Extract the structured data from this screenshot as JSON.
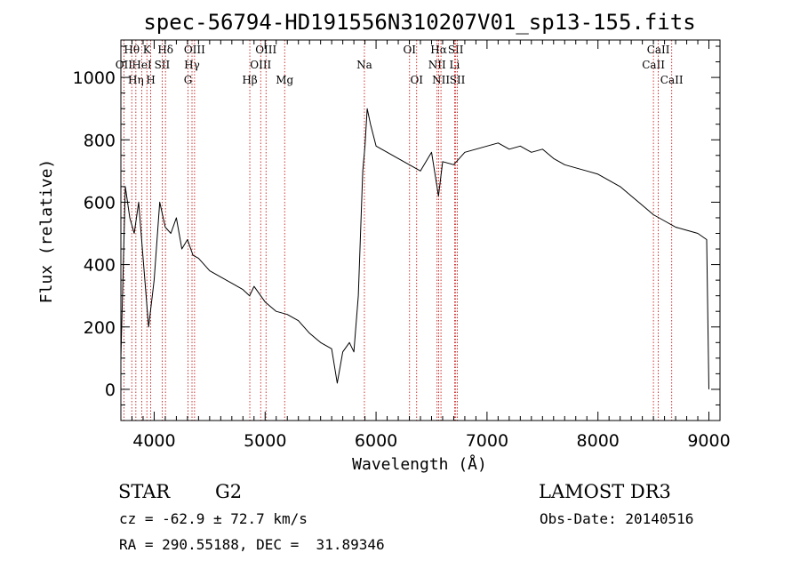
{
  "chart_data": {
    "type": "line",
    "title": "spec-56794-HD191556N310207V01_sp13-155.fits",
    "xlabel": "Wavelength (Å)",
    "ylabel": "Flux (relative)",
    "xlim": [
      3700,
      9100
    ],
    "ylim": [
      -100,
      1120
    ],
    "xticks": [
      "4000",
      "5000",
      "6000",
      "7000",
      "8000",
      "9000"
    ],
    "yticks": [
      "0",
      "200",
      "400",
      "600",
      "800",
      "1000"
    ],
    "grid": false,
    "series": [
      {
        "color": "#000000",
        "x": [
          3700,
          3740,
          3780,
          3820,
          3860,
          3900,
          3950,
          4000,
          4050,
          4100,
          4150,
          4200,
          4250,
          4300,
          4350,
          4400,
          4500,
          4600,
          4700,
          4800,
          4860,
          4900,
          5000,
          5100,
          5200,
          5300,
          5400,
          5500,
          5600,
          5650,
          5700,
          5760,
          5800,
          5840,
          5860,
          5880,
          5900,
          5920,
          5950,
          6000,
          6100,
          6200,
          6300,
          6400,
          6500,
          6563,
          6600,
          6700,
          6800,
          6900,
          7000,
          7100,
          7200,
          7300,
          7400,
          7500,
          7600,
          7700,
          7800,
          7900,
          8000,
          8100,
          8200,
          8300,
          8400,
          8500,
          8600,
          8700,
          8800,
          8900,
          8980,
          9000
        ],
        "y": [
          100,
          650,
          550,
          500,
          600,
          420,
          200,
          350,
          600,
          520,
          500,
          550,
          450,
          480,
          430,
          420,
          380,
          360,
          340,
          320,
          300,
          330,
          280,
          250,
          240,
          220,
          180,
          150,
          130,
          20,
          120,
          150,
          120,
          300,
          500,
          700,
          780,
          900,
          850,
          780,
          760,
          740,
          720,
          700,
          760,
          620,
          730,
          720,
          760,
          770,
          780,
          790,
          770,
          780,
          760,
          770,
          740,
          720,
          710,
          700,
          690,
          670,
          650,
          620,
          590,
          560,
          540,
          520,
          510,
          500,
          480,
          0
        ]
      }
    ],
    "line_markers": [
      {
        "label": "OII",
        "wl": 3727,
        "row": 2
      },
      {
        "label": "Hθ",
        "wl": 3798,
        "row": 1
      },
      {
        "label": "Hη",
        "wl": 3835,
        "row": 3
      },
      {
        "label": "HeI",
        "wl": 3889,
        "row": 2
      },
      {
        "label": "K",
        "wl": 3934,
        "row": 1
      },
      {
        "label": "H",
        "wl": 3969,
        "row": 3
      },
      {
        "label": "SII",
        "wl": 4072,
        "row": 2
      },
      {
        "label": "Hδ",
        "wl": 4102,
        "row": 1
      },
      {
        "label": "G",
        "wl": 4305,
        "row": 3
      },
      {
        "label": "Hγ",
        "wl": 4341,
        "row": 2
      },
      {
        "label": "OIII",
        "wl": 4364,
        "row": 1
      },
      {
        "label": "Hβ",
        "wl": 4862,
        "row": 3
      },
      {
        "label": "OIII",
        "wl": 4960,
        "row": 2
      },
      {
        "label": "OIII",
        "wl": 5008,
        "row": 1
      },
      {
        "label": "Mg",
        "wl": 5176,
        "row": 3
      },
      {
        "label": "Na",
        "wl": 5895,
        "row": 2
      },
      {
        "label": "OI",
        "wl": 6302,
        "row": 1
      },
      {
        "label": "OI",
        "wl": 6366,
        "row": 3
      },
      {
        "label": "NII",
        "wl": 6550,
        "row": 2
      },
      {
        "label": "Hα",
        "wl": 6565,
        "row": 1
      },
      {
        "label": "NII",
        "wl": 6585,
        "row": 3
      },
      {
        "label": "Li",
        "wl": 6708,
        "row": 2
      },
      {
        "label": "SII",
        "wl": 6718,
        "row": 1
      },
      {
        "label": "SII",
        "wl": 6733,
        "row": 3
      },
      {
        "label": "CaII",
        "wl": 8500,
        "row": 2
      },
      {
        "label": "CaII",
        "wl": 8544,
        "row": 1
      },
      {
        "label": "CaII",
        "wl": 8665,
        "row": 3
      }
    ]
  },
  "info": {
    "class_label": "STAR",
    "subclass": "G2",
    "survey": "LAMOST DR3",
    "redshift": "cz = -62.9 ± 72.7 km/s",
    "obs_date": "Obs-Date: 20140516",
    "coords": "RA = 290.55188, DEC =  31.89346"
  },
  "colors": {
    "spectrum": "#000000",
    "marker_line": "#c00000",
    "axes": "#000000"
  }
}
